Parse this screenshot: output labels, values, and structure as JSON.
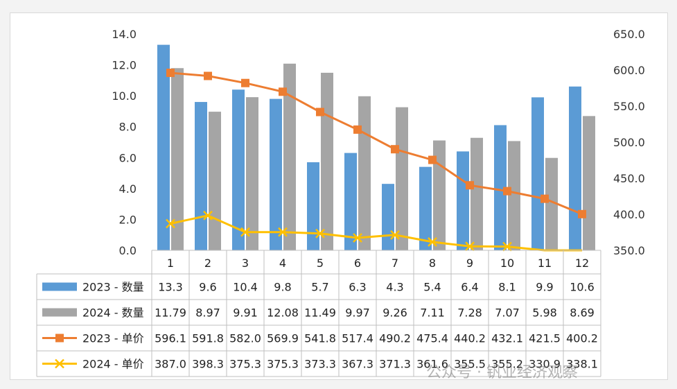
{
  "chart_data": {
    "type": "bar",
    "categories": [
      "1",
      "2",
      "3",
      "4",
      "5",
      "6",
      "7",
      "8",
      "9",
      "10",
      "11",
      "12"
    ],
    "series": [
      {
        "name": "2023 - 数量",
        "type": "bar",
        "axis": "left",
        "color": "#5b9bd5",
        "values": [
          13.3,
          9.6,
          10.4,
          9.8,
          5.7,
          6.3,
          4.3,
          5.4,
          6.4,
          8.1,
          9.9,
          10.6
        ],
        "table": [
          "13.3",
          "9.6",
          "10.4",
          "9.8",
          "5.7",
          "6.3",
          "4.3",
          "5.4",
          "6.4",
          "8.1",
          "9.9",
          "10.6"
        ]
      },
      {
        "name": "2024 - 数量",
        "type": "bar",
        "axis": "left",
        "color": "#a5a5a5",
        "values": [
          11.79,
          8.97,
          9.91,
          12.08,
          11.49,
          9.97,
          9.26,
          7.11,
          7.28,
          7.07,
          5.98,
          8.69
        ],
        "table": [
          "11.79",
          "8.97",
          "9.91",
          "12.08",
          "11.49",
          "9.97",
          "9.26",
          "7.11",
          "7.28",
          "7.07",
          "5.98",
          "8.69"
        ]
      },
      {
        "name": "2023 - 单价",
        "type": "line",
        "axis": "right",
        "marker": "square",
        "color": "#ed7d31",
        "values": [
          596.1,
          591.8,
          582.0,
          569.9,
          541.8,
          517.4,
          490.2,
          475.4,
          440.2,
          432.1,
          421.5,
          400.2
        ],
        "table": [
          "596.1",
          "591.8",
          "582.0",
          "569.9",
          "541.8",
          "517.4",
          "490.2",
          "475.4",
          "440.2",
          "432.1",
          "421.5",
          "400.2"
        ]
      },
      {
        "name": "2024 - 单价",
        "type": "line",
        "axis": "right",
        "marker": "x",
        "color": "#ffc000",
        "values": [
          387.0,
          398.3,
          375.3,
          375.3,
          373.3,
          367.3,
          371.3,
          361.6,
          355.5,
          355.2,
          330.9,
          338.1
        ],
        "table": [
          "387.0",
          "398.3",
          "375.3",
          "375.3",
          "373.3",
          "367.3",
          "371.3",
          "361.6",
          "355.5",
          "355.2",
          "330.9",
          "338.1"
        ]
      }
    ],
    "y_left": {
      "min": 0,
      "max": 14,
      "ticks": [
        "0.0",
        "2.0",
        "4.0",
        "6.0",
        "8.0",
        "10.0",
        "12.0",
        "14.0"
      ]
    },
    "y_right": {
      "min": 350,
      "max": 650,
      "ticks": [
        "350.0",
        "400.0",
        "450.0",
        "500.0",
        "550.0",
        "600.0",
        "650.0"
      ]
    },
    "data_table": true,
    "grid": false
  },
  "watermark": "公众号 · 钒业经济观察"
}
